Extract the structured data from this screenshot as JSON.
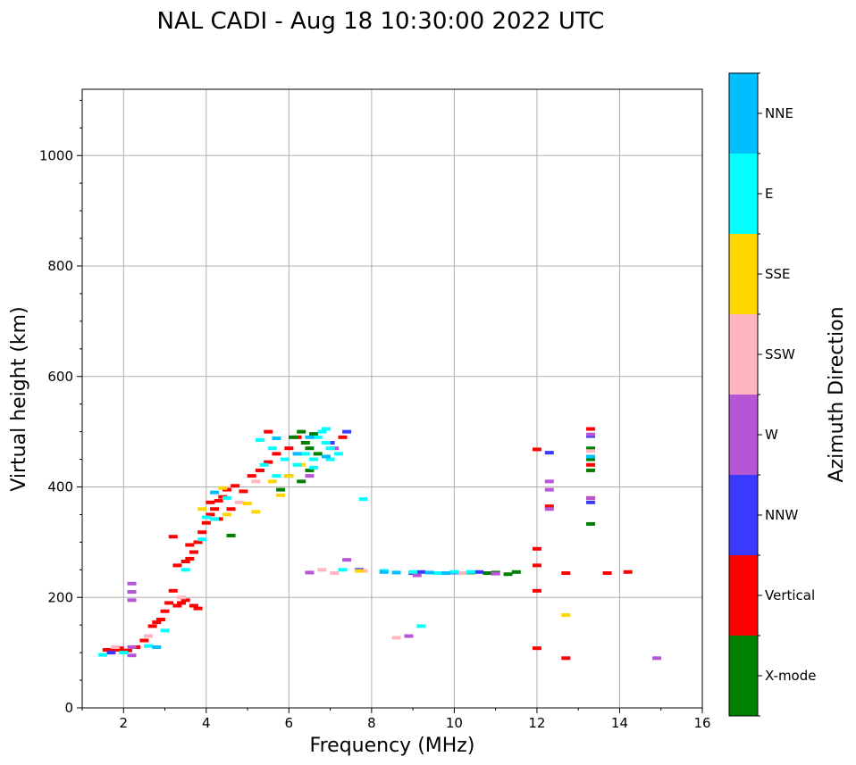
{
  "chart_data": {
    "type": "scatter",
    "title": "NAL CADI - Aug 18 10:30:00 2022 UTC",
    "xlabel": "Frequency (MHz)",
    "ylabel": "Virtual height (km)",
    "xlim": [
      1,
      16
    ],
    "ylim": [
      0,
      1120
    ],
    "xticks": [
      2,
      4,
      6,
      8,
      10,
      12,
      14,
      16
    ],
    "yticks": [
      0,
      200,
      400,
      600,
      800,
      1000
    ],
    "grid": true,
    "colorbar": {
      "title": "Azimuth Direction",
      "categories": [
        {
          "label": "X-mode",
          "color": "#008000"
        },
        {
          "label": "Vertical",
          "color": "#ff0000"
        },
        {
          "label": "NNW",
          "color": "#3a3aff"
        },
        {
          "label": "W",
          "color": "#b656d4"
        },
        {
          "label": "SSW",
          "color": "#ffb6c1"
        },
        {
          "label": "SSE",
          "color": "#ffd700"
        },
        {
          "label": "E",
          "color": "#00ffff"
        },
        {
          "label": "NNE",
          "color": "#00bfff"
        }
      ]
    },
    "series": [
      {
        "name": "Vertical",
        "points": [
          [
            1.6,
            105
          ],
          [
            1.8,
            105
          ],
          [
            1.9,
            108
          ],
          [
            2.0,
            102
          ],
          [
            2.1,
            104
          ],
          [
            2.3,
            110
          ],
          [
            2.5,
            122
          ],
          [
            2.7,
            148
          ],
          [
            2.8,
            155
          ],
          [
            2.9,
            160
          ],
          [
            3.0,
            175
          ],
          [
            3.1,
            190
          ],
          [
            3.2,
            212
          ],
          [
            3.3,
            185
          ],
          [
            3.4,
            190
          ],
          [
            3.5,
            195
          ],
          [
            3.7,
            185
          ],
          [
            3.8,
            180
          ],
          [
            3.3,
            258
          ],
          [
            3.5,
            265
          ],
          [
            3.6,
            270
          ],
          [
            3.7,
            282
          ],
          [
            3.8,
            300
          ],
          [
            3.9,
            318
          ],
          [
            4.0,
            335
          ],
          [
            4.1,
            350
          ],
          [
            4.2,
            360
          ],
          [
            4.3,
            375
          ],
          [
            4.4,
            382
          ],
          [
            4.5,
            395
          ],
          [
            4.7,
            402
          ],
          [
            4.9,
            392
          ],
          [
            5.1,
            420
          ],
          [
            5.3,
            430
          ],
          [
            5.5,
            445
          ],
          [
            5.7,
            460
          ],
          [
            6.0,
            470
          ],
          [
            6.2,
            490
          ],
          [
            3.2,
            310
          ],
          [
            3.6,
            295
          ],
          [
            4.1,
            372
          ],
          [
            4.3,
            342
          ],
          [
            4.6,
            360
          ],
          [
            5.5,
            500
          ],
          [
            7.3,
            490
          ],
          [
            12.0,
            468
          ],
          [
            12.0,
            288
          ],
          [
            12.0,
            258
          ],
          [
            12.0,
            212
          ],
          [
            12.0,
            108
          ],
          [
            12.3,
            365
          ],
          [
            12.7,
            244
          ],
          [
            12.7,
            90
          ],
          [
            13.3,
            505
          ],
          [
            13.3,
            380
          ],
          [
            13.3,
            440
          ],
          [
            13.7,
            244
          ],
          [
            14.2,
            246
          ]
        ]
      },
      {
        "name": "X-mode",
        "points": [
          [
            4.6,
            312
          ],
          [
            5.8,
            395
          ],
          [
            6.1,
            490
          ],
          [
            6.3,
            500
          ],
          [
            6.4,
            480
          ],
          [
            6.5,
            470
          ],
          [
            6.6,
            496
          ],
          [
            6.7,
            460
          ],
          [
            6.5,
            430
          ],
          [
            6.3,
            410
          ],
          [
            6.0,
            420
          ],
          [
            10.4,
            245
          ],
          [
            10.8,
            244
          ],
          [
            11.0,
            245
          ],
          [
            11.3,
            242
          ],
          [
            11.5,
            246
          ],
          [
            13.3,
            333
          ],
          [
            13.3,
            430
          ],
          [
            13.3,
            450
          ],
          [
            13.3,
            470
          ]
        ]
      },
      {
        "name": "NNW",
        "points": [
          [
            1.7,
            100
          ],
          [
            7.0,
            480
          ],
          [
            7.4,
            500
          ],
          [
            7.7,
            250
          ],
          [
            9.0,
            244
          ],
          [
            9.2,
            246
          ],
          [
            10.0,
            245
          ],
          [
            10.6,
            246
          ],
          [
            12.3,
            462
          ],
          [
            13.3,
            372
          ],
          [
            13.3,
            492
          ]
        ]
      },
      {
        "name": "W",
        "points": [
          [
            2.2,
            225
          ],
          [
            2.2,
            210
          ],
          [
            2.2,
            195
          ],
          [
            2.2,
            110
          ],
          [
            2.2,
            95
          ],
          [
            6.5,
            420
          ],
          [
            7.1,
            470
          ],
          [
            7.4,
            268
          ],
          [
            12.3,
            410
          ],
          [
            12.3,
            395
          ],
          [
            12.3,
            360
          ],
          [
            13.3,
            380
          ],
          [
            13.3,
            495
          ],
          [
            14.9,
            90
          ],
          [
            8.9,
            130
          ],
          [
            9.1,
            240
          ],
          [
            6.5,
            245
          ],
          [
            11.0,
            243
          ]
        ]
      },
      {
        "name": "SSW",
        "points": [
          [
            1.8,
            110
          ],
          [
            2.6,
            130
          ],
          [
            4.8,
            372
          ],
          [
            6.8,
            250
          ],
          [
            7.1,
            244
          ],
          [
            8.6,
            127
          ],
          [
            7.8,
            248
          ],
          [
            10.2,
            244
          ],
          [
            13.3,
            465
          ],
          [
            3.4,
            200
          ],
          [
            5.2,
            410
          ]
        ]
      },
      {
        "name": "SSE",
        "points": [
          [
            3.9,
            360
          ],
          [
            4.5,
            350
          ],
          [
            5.0,
            370
          ],
          [
            5.2,
            355
          ],
          [
            5.8,
            385
          ],
          [
            6.0,
            420
          ],
          [
            6.3,
            440
          ],
          [
            7.7,
            248
          ],
          [
            12.7,
            168
          ],
          [
            4.4,
            398
          ],
          [
            5.6,
            410
          ]
        ]
      },
      {
        "name": "E",
        "points": [
          [
            1.5,
            96
          ],
          [
            2.0,
            100
          ],
          [
            2.6,
            112
          ],
          [
            3.0,
            140
          ],
          [
            3.5,
            250
          ],
          [
            3.9,
            305
          ],
          [
            4.0,
            345
          ],
          [
            4.2,
            342
          ],
          [
            4.5,
            380
          ],
          [
            5.3,
            485
          ],
          [
            5.6,
            470
          ],
          [
            5.9,
            450
          ],
          [
            6.2,
            440
          ],
          [
            6.4,
            460
          ],
          [
            6.6,
            450
          ],
          [
            6.7,
            490
          ],
          [
            6.8,
            500
          ],
          [
            6.9,
            480
          ],
          [
            7.0,
            470
          ],
          [
            7.2,
            460
          ],
          [
            7.0,
            450
          ],
          [
            6.6,
            435
          ],
          [
            6.9,
            505
          ],
          [
            7.3,
            250
          ],
          [
            7.8,
            378
          ],
          [
            8.3,
            248
          ],
          [
            9.0,
            246
          ],
          [
            9.2,
            148
          ],
          [
            9.6,
            244
          ],
          [
            10.0,
            246
          ],
          [
            10.4,
            246
          ],
          [
            5.4,
            440
          ],
          [
            5.7,
            420
          ]
        ]
      },
      {
        "name": "NNE",
        "points": [
          [
            2.8,
            110
          ],
          [
            5.7,
            488
          ],
          [
            6.2,
            460
          ],
          [
            6.5,
            490
          ],
          [
            6.9,
            455
          ],
          [
            8.3,
            246
          ],
          [
            8.6,
            245
          ],
          [
            9.4,
            245
          ],
          [
            9.8,
            244
          ],
          [
            13.3,
            455
          ],
          [
            4.2,
            390
          ]
        ]
      }
    ]
  }
}
